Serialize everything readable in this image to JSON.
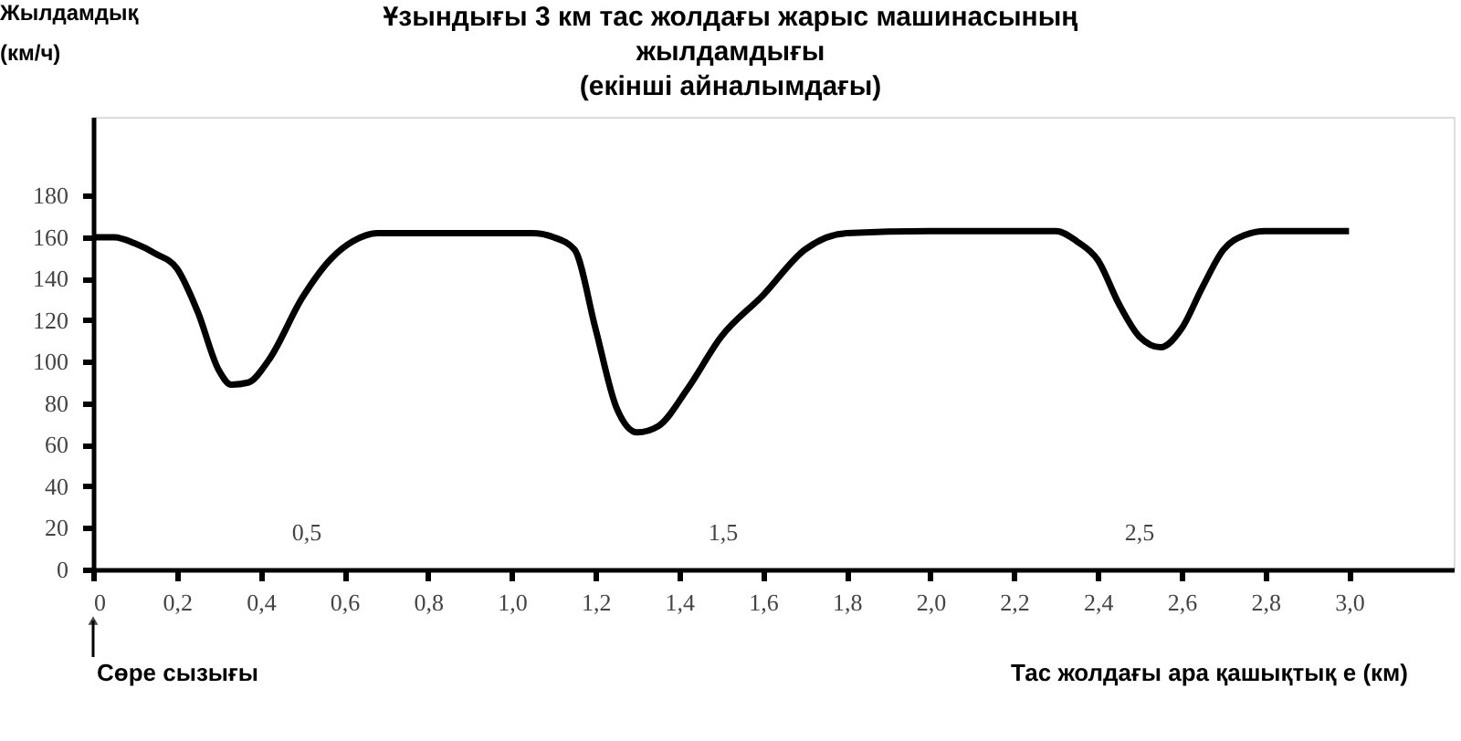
{
  "chart_data": {
    "type": "line",
    "title": "Ұзындығы 3 км тас жолдағы жарыс машинасының\nжылдамдығы\n(екінші айналымдағы)",
    "ylabel": "Жылдамдық\n(км/ч)",
    "xlabel": "Тас жолдағы ара қашықтық е (км)",
    "x": [
      0,
      0.05,
      0.1,
      0.15,
      0.2,
      0.25,
      0.3,
      0.33,
      0.37,
      0.42,
      0.5,
      0.57,
      0.62,
      0.68,
      0.75,
      1.0,
      1.05,
      1.1,
      1.15,
      1.2,
      1.25,
      1.3,
      1.35,
      1.42,
      1.5,
      1.6,
      1.7,
      1.8,
      2.0,
      2.3,
      2.35,
      2.4,
      2.45,
      2.5,
      2.55,
      2.6,
      2.65,
      2.7,
      2.75,
      2.8,
      3.0
    ],
    "series": [
      {
        "color": "#000000",
        "values": [
          160,
          160,
          157,
          152,
          145,
          124,
          96,
          89,
          90,
          101,
          131,
          150,
          158,
          162,
          162,
          162,
          162,
          160,
          154,
          116,
          78,
          66,
          69,
          87,
          112,
          132,
          154,
          162,
          163,
          163,
          158,
          149,
          128,
          112,
          107,
          116,
          136,
          154,
          161,
          163,
          163
        ]
      }
    ],
    "xlim": [
      0,
      3.25
    ],
    "ylim": [
      0,
      218
    ],
    "xticks": [
      0,
      {
        "value": 0.2,
        "label": "0,2"
      },
      {
        "value": 0.4,
        "label": "0,4"
      },
      {
        "value": 0.6,
        "label": "0,6"
      },
      {
        "value": 0.8,
        "label": "0,8"
      },
      {
        "value": 1.0,
        "label": "1,0"
      },
      {
        "value": 1.2,
        "label": "1,2"
      },
      {
        "value": 1.4,
        "label": "1,4"
      },
      {
        "value": 1.6,
        "label": "1,6"
      },
      {
        "value": 1.8,
        "label": "1,8"
      },
      {
        "value": 2.0,
        "label": "2,0"
      },
      {
        "value": 2.2,
        "label": "2,2"
      },
      {
        "value": 2.4,
        "label": "2,4"
      },
      {
        "value": 2.6,
        "label": "2,6"
      },
      {
        "value": 2.8,
        "label": "2,8"
      },
      {
        "value": 3.0,
        "label": "3,0"
      }
    ],
    "yticks": [
      0,
      20,
      40,
      60,
      80,
      100,
      120,
      140,
      160,
      180
    ],
    "annotations": [
      "0,5",
      "1,5",
      "2,5",
      "Сөре сызығы"
    ],
    "grid": false,
    "marker": "none",
    "line_style": "solid"
  }
}
